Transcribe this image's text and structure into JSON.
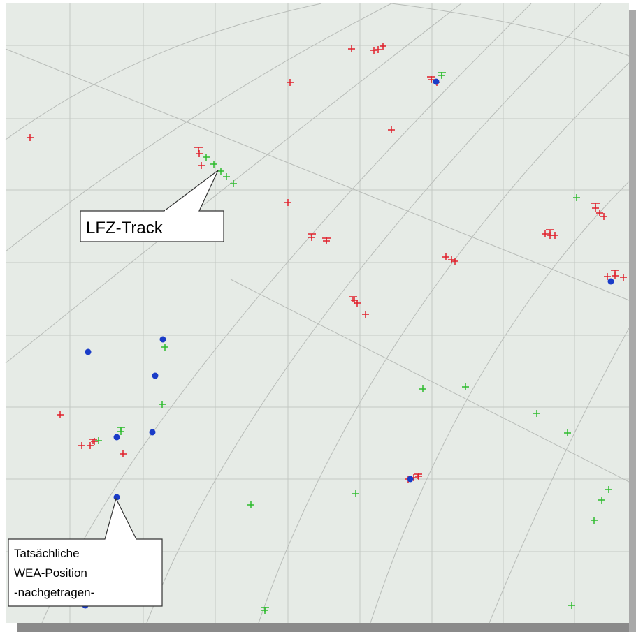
{
  "callouts": [
    {
      "label": "LFZ-Track"
    },
    {
      "lines": [
        "Tatsächliche",
        "WEA-Position",
        "-nachgetragen-"
      ]
    }
  ]
}
